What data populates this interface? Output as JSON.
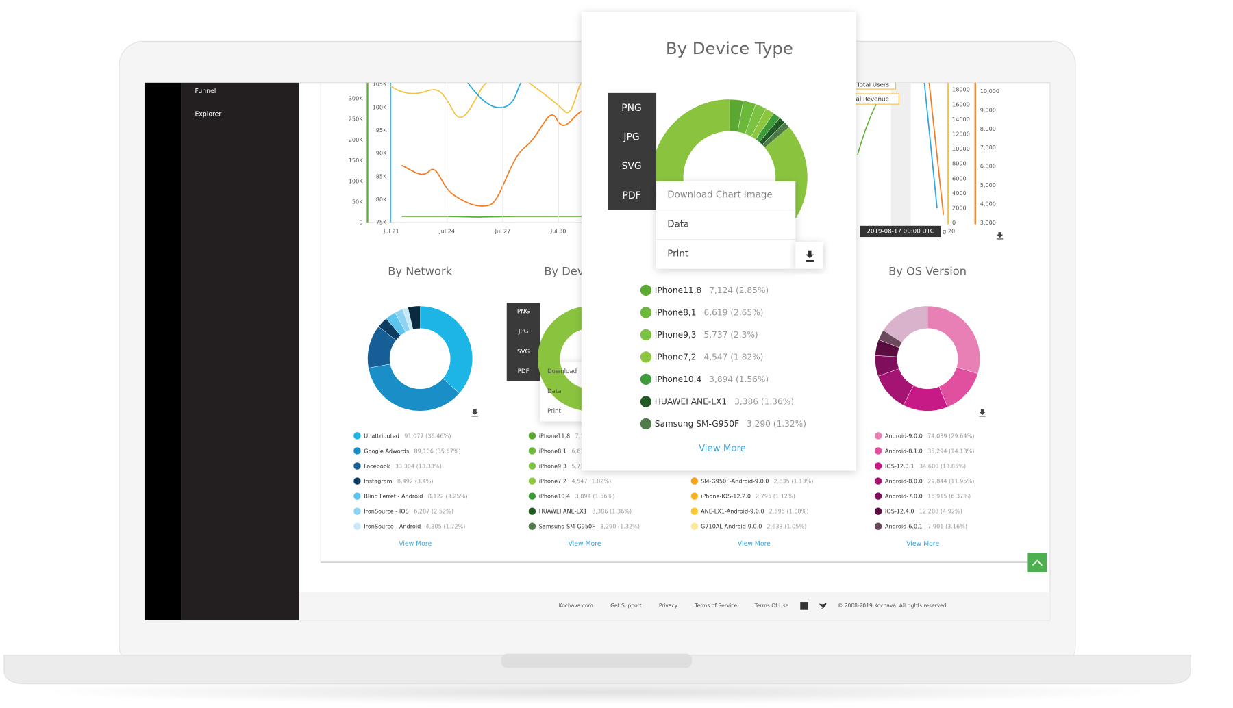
{
  "sidebar": {
    "items": [
      "Funnel",
      "Explorer"
    ]
  },
  "trend_chart": {
    "left_axis": [
      "300K",
      "250K",
      "200K",
      "150K",
      "100K",
      "50K",
      "0"
    ],
    "mid_axis": [
      "105K",
      "100K",
      "95K",
      "90K",
      "85K",
      "80K",
      "75K"
    ],
    "x_labels": [
      "Jul 21",
      "Jul 24",
      "Jul 27",
      "Jul 30"
    ]
  },
  "users_chart": {
    "legend": [
      "Total Users",
      "al Revenue"
    ],
    "left_axis": [
      "18000",
      "16000",
      "14000",
      "12000",
      "10000",
      "8000",
      "6000",
      "4000",
      "2000",
      "0"
    ],
    "right_axis": [
      "10,000",
      "9,000",
      "8,000",
      "7,000",
      "6,000",
      "5,000",
      "4,000",
      "3,000"
    ],
    "tooltip": "2019-08-17 00:00 UTC",
    "x_label": "g 20"
  },
  "network_card": {
    "title": "By Network",
    "legend": [
      {
        "name": "Unattributed",
        "value": 36.46,
        "label": "91,077 (36.46%)",
        "color": "#1cb5e6"
      },
      {
        "name": "Google Adwords",
        "value": 35.67,
        "label": "89,106 (35.67%)",
        "color": "#1a8fc7"
      },
      {
        "name": "Facebook",
        "value": 13.33,
        "label": "33,304 (13.33%)",
        "color": "#155f96"
      },
      {
        "name": "Instagram",
        "value": 3.4,
        "label": "8,492 (3.4%)",
        "color": "#0d3c61"
      },
      {
        "name": "Blind Ferret - Android",
        "value": 3.25,
        "label": "8,122 (3.25%)",
        "color": "#5bc5ee"
      },
      {
        "name": "IronSource - IOS",
        "value": 2.52,
        "label": "6,287 (2.52%)",
        "color": "#8ed3f2"
      },
      {
        "name": "IronSource - Android",
        "value": 1.72,
        "label": "4,305 (1.72%)",
        "color": "#c8e9f7"
      }
    ],
    "view_more": "View More"
  },
  "device_card": {
    "title": "By Dev",
    "names": [
      "iPhone11,8",
      "iPhone8,1",
      "iPhone9,3",
      "iPhone7,2",
      "iPhone10,4",
      "HUAWEI ANE-LX1",
      "Samsung SM-G950F"
    ],
    "formats": [
      "PNG",
      "JPG",
      "SVG",
      "PDF"
    ],
    "options": [
      "Download",
      "Data",
      "Print"
    ],
    "view_more": "View More"
  },
  "model_card": {
    "legend": [
      {
        "name": "SM-G950F-Android-9.0.0",
        "value": 1.13,
        "label": "2,835 (1.13%)",
        "color": "#f7a21b"
      },
      {
        "name": "iPhone-IOS-12.2.0",
        "value": 1.12,
        "label": "2,795 (1.12%)",
        "color": "#f9b323"
      },
      {
        "name": "ANE-LX1-Android-9.0.0",
        "value": 1.08,
        "label": "2,695 (1.08%)",
        "color": "#fcc832"
      },
      {
        "name": "G710AL-Android-9.0.0",
        "value": 1.05,
        "label": "2,633 (1.05%)",
        "color": "#fde79a"
      }
    ],
    "view_more": "View More"
  },
  "os_card": {
    "title": "By OS Version",
    "legend": [
      {
        "name": "Android-9.0.0",
        "value": 29.64,
        "label": "74,039 (29.64%)",
        "color": "#e87fb5"
      },
      {
        "name": "Android-8.1.0",
        "value": 14.13,
        "label": "35,294 (14.13%)",
        "color": "#e0509f"
      },
      {
        "name": "IOS-12.3.1",
        "value": 13.85,
        "label": "34,600 (13.85%)",
        "color": "#c81a87"
      },
      {
        "name": "Android-8.0.0",
        "value": 11.95,
        "label": "29,844 (11.95%)",
        "color": "#a51373"
      },
      {
        "name": "Android-7.0.0",
        "value": 6.37,
        "label": "15,915 (6.37%)",
        "color": "#7f0f5c"
      },
      {
        "name": "IOS-12.4.0",
        "value": 4.92,
        "label": "12,288 (4.92%)",
        "color": "#5a0b40"
      },
      {
        "name": "Android-6.0.1",
        "value": 3.16,
        "label": "7,901 (3.16%)",
        "color": "#6b4a5e"
      }
    ],
    "view_more": "View More"
  },
  "popup": {
    "title": "By Device Type",
    "formats": [
      "PNG",
      "JPG",
      "SVG",
      "PDF"
    ],
    "options": [
      "Download Chart Image",
      "Data",
      "Print"
    ],
    "legend": [
      {
        "name": "IPhone11,8",
        "value": 2.85,
        "label": "7,124 (2.85%)",
        "color": "#5aa832"
      },
      {
        "name": "IPhone8,1",
        "value": 2.65,
        "label": "6,619 (2.65%)",
        "color": "#6cb83a"
      },
      {
        "name": "IPhone9,3",
        "value": 2.3,
        "label": "5,737 (2.3%)",
        "color": "#7cc242"
      },
      {
        "name": "IPhone7,2",
        "value": 1.82,
        "label": "4,547 (1.82%)",
        "color": "#8cc63f"
      },
      {
        "name": "IPhone10,4",
        "value": 1.56,
        "label": "3,894 (1.56%)",
        "color": "#3e9b3a"
      },
      {
        "name": "HUAWEI ANE-LX1",
        "value": 1.36,
        "label": "3,386 (1.36%)",
        "color": "#215a24"
      },
      {
        "name": "Samsung SM-G950F",
        "value": 1.32,
        "label": "3,290 (1.32%)",
        "color": "#4f7a4a"
      }
    ],
    "view_more": "View More"
  },
  "footer": {
    "links": [
      "Kochava.com",
      "Get Support",
      "Privacy",
      "Terms of Service",
      "Terms Of Use"
    ],
    "copyright": "© 2008-2019 Kochava. All rights reserved."
  }
}
